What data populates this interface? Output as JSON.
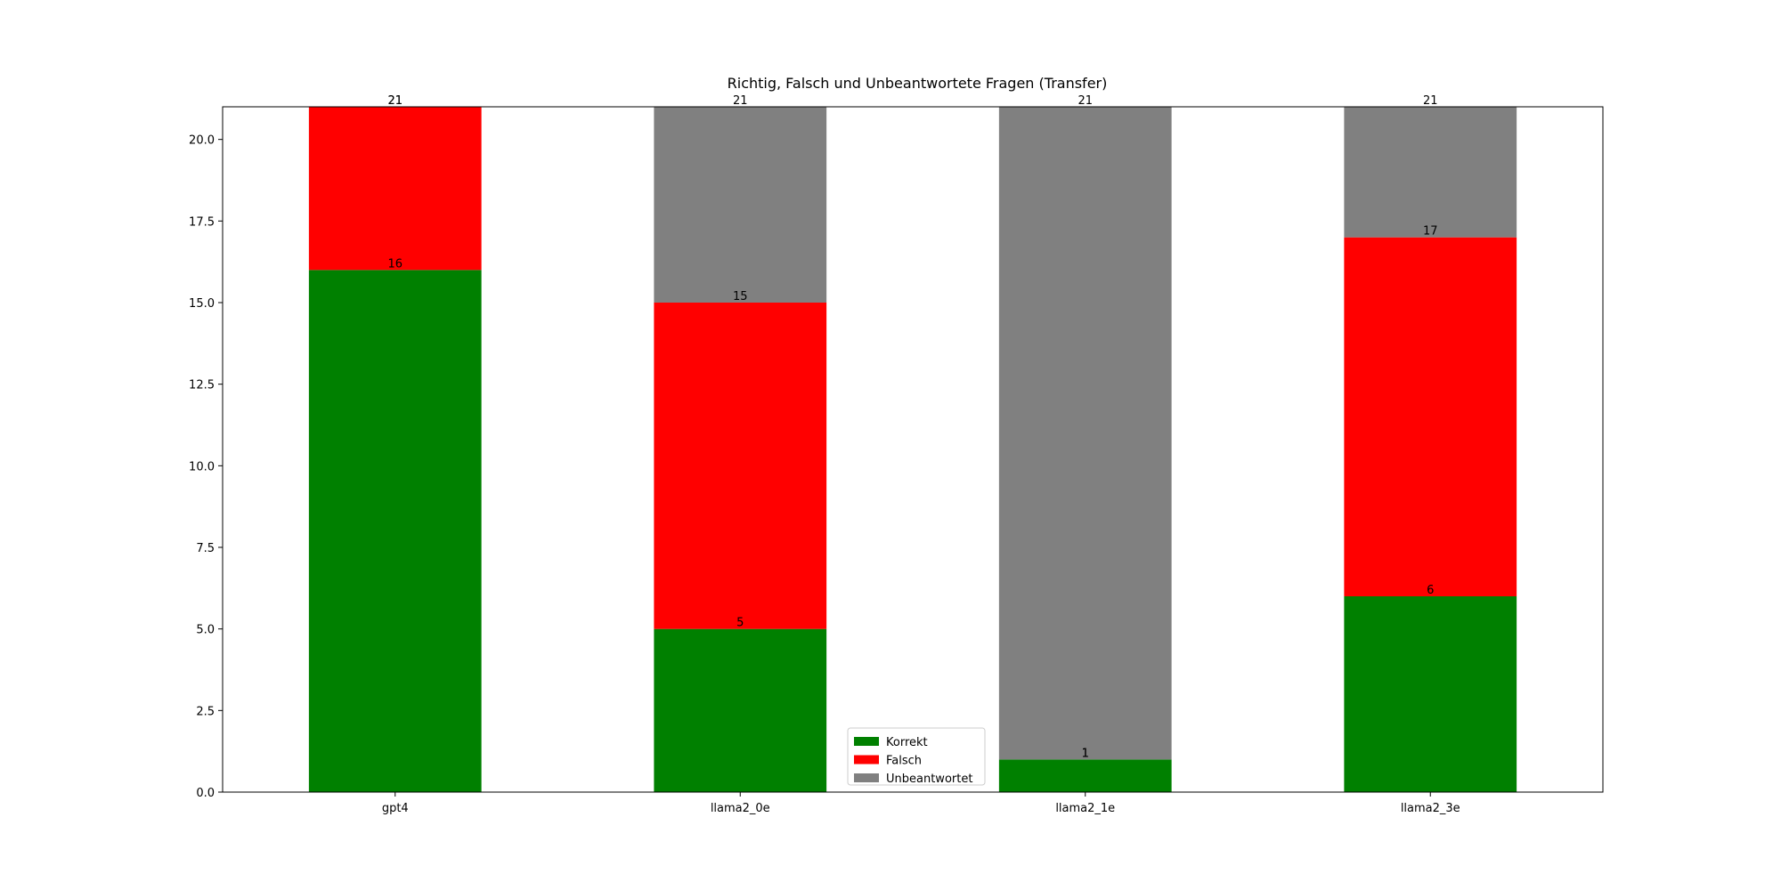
{
  "chart_data": {
    "type": "bar",
    "stacked": true,
    "title": "Richtig, Falsch und Unbeantwortete Fragen (Transfer)",
    "xlabel": "",
    "ylabel": "",
    "categories": [
      "gpt4",
      "llama2_0e",
      "llama2_1e",
      "llama2_3e"
    ],
    "series": [
      {
        "name": "Korrekt",
        "color": "#008000",
        "values": [
          16,
          5,
          1,
          6
        ]
      },
      {
        "name": "Falsch",
        "color": "#ff0000",
        "values": [
          5,
          10,
          0,
          11
        ]
      },
      {
        "name": "Unbeantwortet",
        "color": "#808080",
        "values": [
          0,
          6,
          20,
          4
        ]
      }
    ],
    "cumulative_labels": [
      [
        "16",
        "5",
        "1",
        "6"
      ],
      [
        "21",
        "15",
        "1",
        "17"
      ],
      [
        "21",
        "21",
        "21",
        "21"
      ]
    ],
    "ylim": [
      0,
      21
    ],
    "yticks": [
      0.0,
      2.5,
      5.0,
      7.5,
      10.0,
      12.5,
      15.0,
      17.5,
      20.0
    ],
    "ytick_labels": [
      "0.0",
      "2.5",
      "5.0",
      "7.5",
      "10.0",
      "12.5",
      "15.0",
      "17.5",
      "20.0"
    ],
    "grid": false,
    "legend_position": "bottom-center"
  }
}
